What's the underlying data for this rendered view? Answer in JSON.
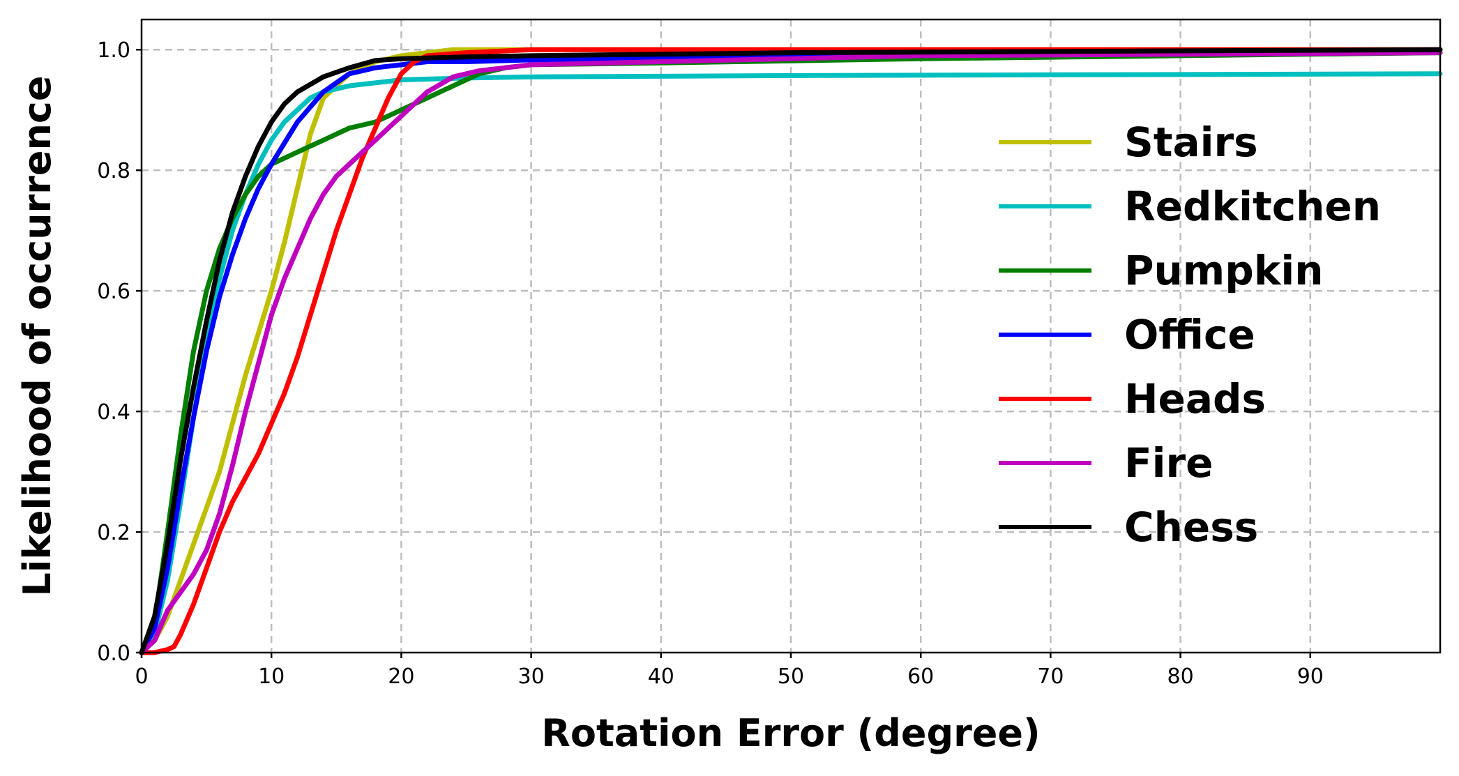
{
  "chart_data": {
    "type": "line",
    "title": "",
    "xlabel": "Rotation Error (degree)",
    "ylabel": "Likelihood of occurrence",
    "xlim": [
      0,
      100
    ],
    "ylim": [
      0,
      1.05
    ],
    "xticks": [
      0,
      10,
      20,
      30,
      40,
      50,
      60,
      70,
      80,
      90
    ],
    "xtick_labels": [
      "0",
      "10",
      "20",
      "30",
      "40",
      "50",
      "60",
      "70",
      "80",
      "90"
    ],
    "yticks": [
      0,
      0.2,
      0.4,
      0.6,
      0.8,
      1.0
    ],
    "ytick_labels": [
      "0.0",
      "0.2",
      "0.4",
      "0.6",
      "0.8",
      "1.0"
    ],
    "grid": true,
    "legend_position": "right",
    "series": [
      {
        "name": "Stairs",
        "color": "#bfbf00",
        "x": [
          0,
          1,
          2,
          3,
          4,
          5,
          6,
          7,
          8,
          9,
          10,
          11,
          12,
          13,
          14,
          16,
          18,
          20,
          22,
          24,
          30,
          50,
          100
        ],
        "y": [
          0,
          0.02,
          0.06,
          0.12,
          0.18,
          0.24,
          0.3,
          0.38,
          0.46,
          0.53,
          0.6,
          0.68,
          0.77,
          0.86,
          0.92,
          0.96,
          0.98,
          0.99,
          0.995,
          1.0,
          1.0,
          1.0,
          1.0
        ]
      },
      {
        "name": "Redkitchen",
        "color": "#00bfbf",
        "x": [
          0,
          1,
          2,
          3,
          4,
          5,
          6,
          7,
          8,
          9,
          10,
          11,
          12,
          13,
          14,
          16,
          18,
          20,
          25,
          30,
          50,
          100
        ],
        "y": [
          0,
          0.03,
          0.12,
          0.25,
          0.39,
          0.52,
          0.62,
          0.7,
          0.76,
          0.81,
          0.85,
          0.88,
          0.9,
          0.92,
          0.93,
          0.94,
          0.945,
          0.95,
          0.953,
          0.955,
          0.957,
          0.96
        ]
      },
      {
        "name": "Pumpkin",
        "color": "#007f00",
        "x": [
          0,
          1,
          2,
          3,
          4,
          5,
          6,
          7,
          8,
          9,
          10,
          12,
          14,
          16,
          18,
          20,
          22,
          24,
          26,
          28,
          30,
          40,
          60,
          100
        ],
        "y": [
          0,
          0.05,
          0.2,
          0.36,
          0.5,
          0.6,
          0.67,
          0.72,
          0.76,
          0.79,
          0.81,
          0.83,
          0.85,
          0.87,
          0.88,
          0.9,
          0.92,
          0.94,
          0.96,
          0.97,
          0.975,
          0.978,
          0.985,
          0.995
        ]
      },
      {
        "name": "Office",
        "color": "#0000ff",
        "x": [
          0,
          1,
          2,
          3,
          4,
          5,
          6,
          7,
          8,
          9,
          10,
          12,
          14,
          16,
          18,
          20,
          22,
          25,
          30,
          50,
          100
        ],
        "y": [
          0,
          0.04,
          0.14,
          0.27,
          0.39,
          0.5,
          0.59,
          0.66,
          0.72,
          0.77,
          0.81,
          0.88,
          0.93,
          0.96,
          0.97,
          0.975,
          0.98,
          0.98,
          0.983,
          0.99,
          1.0
        ]
      },
      {
        "name": "Heads",
        "color": "#ff0000",
        "x": [
          0,
          1,
          2,
          2.5,
          3,
          4,
          5,
          6,
          7,
          8,
          9,
          10,
          11,
          12,
          13,
          14,
          15,
          16,
          17,
          18,
          19,
          20,
          21,
          22,
          25,
          30,
          100
        ],
        "y": [
          0,
          0,
          0.005,
          0.01,
          0.03,
          0.08,
          0.14,
          0.2,
          0.25,
          0.29,
          0.33,
          0.38,
          0.43,
          0.49,
          0.56,
          0.63,
          0.7,
          0.76,
          0.82,
          0.87,
          0.92,
          0.96,
          0.98,
          0.99,
          0.995,
          1.0,
          1.0
        ]
      },
      {
        "name": "Fire",
        "color": "#bf00bf",
        "x": [
          0,
          1,
          2,
          3,
          4,
          5,
          6,
          7,
          8,
          9,
          10,
          11,
          12,
          13,
          14,
          15,
          16,
          17,
          18,
          19,
          20,
          21,
          22,
          24,
          26,
          28,
          30,
          40,
          60,
          100
        ],
        "y": [
          0,
          0.02,
          0.07,
          0.1,
          0.13,
          0.17,
          0.23,
          0.31,
          0.4,
          0.48,
          0.56,
          0.62,
          0.67,
          0.72,
          0.76,
          0.79,
          0.81,
          0.83,
          0.85,
          0.87,
          0.89,
          0.91,
          0.93,
          0.955,
          0.965,
          0.97,
          0.975,
          0.98,
          0.99,
          0.995
        ]
      },
      {
        "name": "Chess",
        "color": "#000000",
        "x": [
          0,
          1,
          2,
          3,
          4,
          5,
          6,
          7,
          8,
          9,
          10,
          11,
          12,
          14,
          16,
          18,
          20,
          25,
          30,
          50,
          100
        ],
        "y": [
          0,
          0.06,
          0.18,
          0.32,
          0.44,
          0.55,
          0.65,
          0.73,
          0.79,
          0.84,
          0.88,
          0.91,
          0.93,
          0.955,
          0.97,
          0.982,
          0.985,
          0.988,
          0.99,
          0.995,
          1.0
        ]
      }
    ]
  }
}
